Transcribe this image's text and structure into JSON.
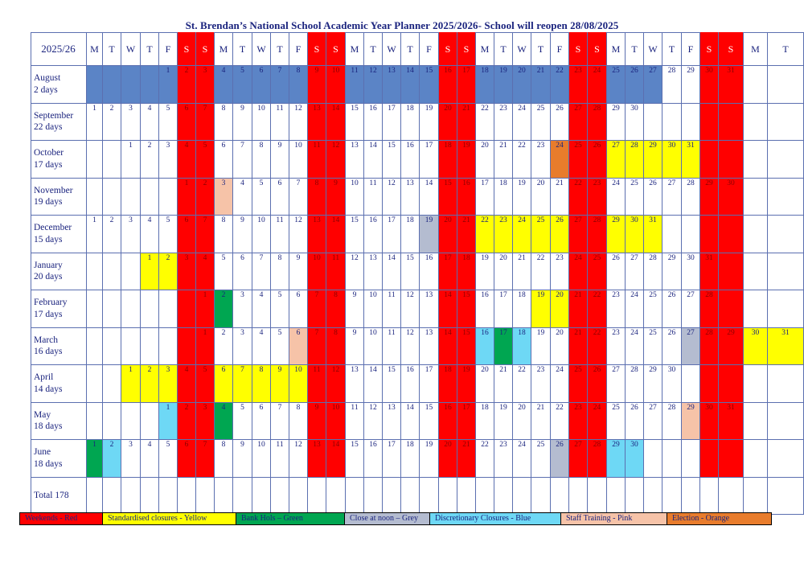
{
  "title": "St. Brendan’s National School Academic Year Planner 2025/2026- School will reopen 28/08/2025",
  "corner_label": "2025/26",
  "day_headers": [
    "M",
    "T",
    "W",
    "T",
    "F",
    "S",
    "S",
    "M",
    "T",
    "W",
    "T",
    "F",
    "S",
    "S",
    "M",
    "T",
    "W",
    "T",
    "F",
    "S",
    "S",
    "M",
    "T",
    "W",
    "T",
    "F",
    "S",
    "S",
    "M",
    "T",
    "W",
    "T",
    "F",
    "S",
    "S",
    "M",
    "T"
  ],
  "colors": {
    "R": "#ff0000",
    "Y": "#ffff00",
    "G": "#00a651",
    "B": "#5b84c6",
    "C": "#6ed8f5",
    "P": "#f6c3a8",
    "O": "#e87c2c",
    "Gy": "#b4bcd0",
    "W": "#ffffff"
  },
  "months": [
    {
      "name": "August",
      "days_label": "2 days",
      "start": 4,
      "count": 31,
      "colors": {
        "1": "B",
        "2": "R",
        "3": "R",
        "4": "B",
        "5": "B",
        "6": "B",
        "7": "B",
        "8": "B",
        "9": "R",
        "10": "R",
        "11": "B",
        "12": "B",
        "13": "B",
        "14": "B",
        "15": "B",
        "16": "R",
        "17": "R",
        "18": "B",
        "19": "B",
        "20": "B",
        "21": "B",
        "22": "B",
        "23": "R",
        "24": "R",
        "25": "B",
        "26": "B",
        "27": "B",
        "30": "R",
        "31": "R"
      },
      "pad_colors": {
        "0": "B",
        "1": "B",
        "2": "B",
        "3": "B"
      }
    },
    {
      "name": "September",
      "days_label": "22 days",
      "start": 0,
      "count": 30,
      "colors": {
        "6": "R",
        "7": "R",
        "13": "R",
        "14": "R",
        "20": "R",
        "21": "R",
        "27": "R",
        "28": "R"
      }
    },
    {
      "name": "October",
      "days_label": "17 days",
      "start": 2,
      "count": 31,
      "colors": {
        "4": "R",
        "5": "R",
        "11": "R",
        "12": "R",
        "18": "R",
        "19": "R",
        "24": "O",
        "25": "R",
        "26": "R",
        "27": "Y",
        "28": "Y",
        "29": "Y",
        "30": "Y",
        "31": "Y"
      }
    },
    {
      "name": "November",
      "days_label": "19 days",
      "start": 5,
      "count": 30,
      "colors": {
        "1": "R",
        "2": "R",
        "3": "P",
        "8": "R",
        "9": "R",
        "15": "R",
        "16": "R",
        "22": "R",
        "23": "R",
        "29": "R",
        "30": "R"
      }
    },
    {
      "name": "December",
      "days_label": "15  days",
      "start": 0,
      "count": 31,
      "colors": {
        "6": "R",
        "7": "R",
        "13": "R",
        "14": "R",
        "19": "Gy",
        "20": "R",
        "21": "R",
        "22": "Y",
        "23": "Y",
        "24": "Y",
        "25": "Y",
        "26": "Y",
        "27": "R",
        "28": "R",
        "29": "Y",
        "30": "Y",
        "31": "Y"
      }
    },
    {
      "name": "January",
      "days_label": "20 days",
      "start": 3,
      "count": 31,
      "colors": {
        "1": "Y",
        "2": "Y",
        "3": "R",
        "4": "R",
        "10": "R",
        "11": "R",
        "17": "R",
        "18": "R",
        "24": "R",
        "25": "R",
        "31": "R"
      }
    },
    {
      "name": "February",
      "days_label": "17 days",
      "start": 6,
      "count": 28,
      "colors": {
        "1": "R",
        "2": "G",
        "7": "R",
        "8": "R",
        "14": "R",
        "15": "R",
        "19": "Y",
        "20": "Y",
        "21": "R",
        "22": "R",
        "28": "R"
      }
    },
    {
      "name": "March",
      "days_label": "16 days",
      "start": 6,
      "count": 31,
      "colors": {
        "1": "R",
        "6": "P",
        "7": "R",
        "8": "R",
        "14": "R",
        "15": "R",
        "16": "C",
        "17": "G",
        "18": "C",
        "21": "R",
        "22": "R",
        "27": "Gy",
        "28": "R",
        "29": "R",
        "30": "Y",
        "31": "Y"
      }
    },
    {
      "name": "April",
      "days_label": "14 days",
      "start": 2,
      "count": 30,
      "colors": {
        "1": "Y",
        "2": "Y",
        "3": "Y",
        "4": "R",
        "5": "R",
        "6": "Y",
        "7": "Y",
        "8": "Y",
        "9": "Y",
        "10": "Y",
        "11": "R",
        "12": "R",
        "18": "R",
        "19": "R",
        "25": "R",
        "26": "R"
      }
    },
    {
      "name": "May",
      "days_label": "18 days",
      "start": 4,
      "count": 31,
      "colors": {
        "1": "C",
        "2": "R",
        "3": "R",
        "4": "G",
        "9": "R",
        "10": "R",
        "16": "R",
        "17": "R",
        "23": "R",
        "24": "R",
        "29": "P",
        "30": "R",
        "31": "R"
      }
    },
    {
      "name": "June",
      "days_label": "18 days",
      "start": 0,
      "count": 30,
      "colors": {
        "1": "G",
        "2": "C",
        "6": "R",
        "7": "R",
        "13": "R",
        "14": "R",
        "20": "R",
        "21": "R",
        "26": "Gy",
        "27": "R",
        "28": "R",
        "29": "C",
        "30": "C"
      }
    }
  ],
  "total_label": "Total 178",
  "legend": [
    {
      "label": "Weekends - Red",
      "color": "#ff0000"
    },
    {
      "label": "Standardised closures - Yellow",
      "color": "#ffff00"
    },
    {
      "label": "Bank Hols – Green",
      "color": "#00a651"
    },
    {
      "label": "Close at noon – Grey",
      "color": "#b4bcd0"
    },
    {
      "label": "Discretionary Closures - Blue",
      "color": "#6ed8f5"
    },
    {
      "label": "Staff Training - Pink",
      "color": "#f6c3a8"
    },
    {
      "label": "Election - Orange",
      "color": "#e87c2c"
    }
  ]
}
